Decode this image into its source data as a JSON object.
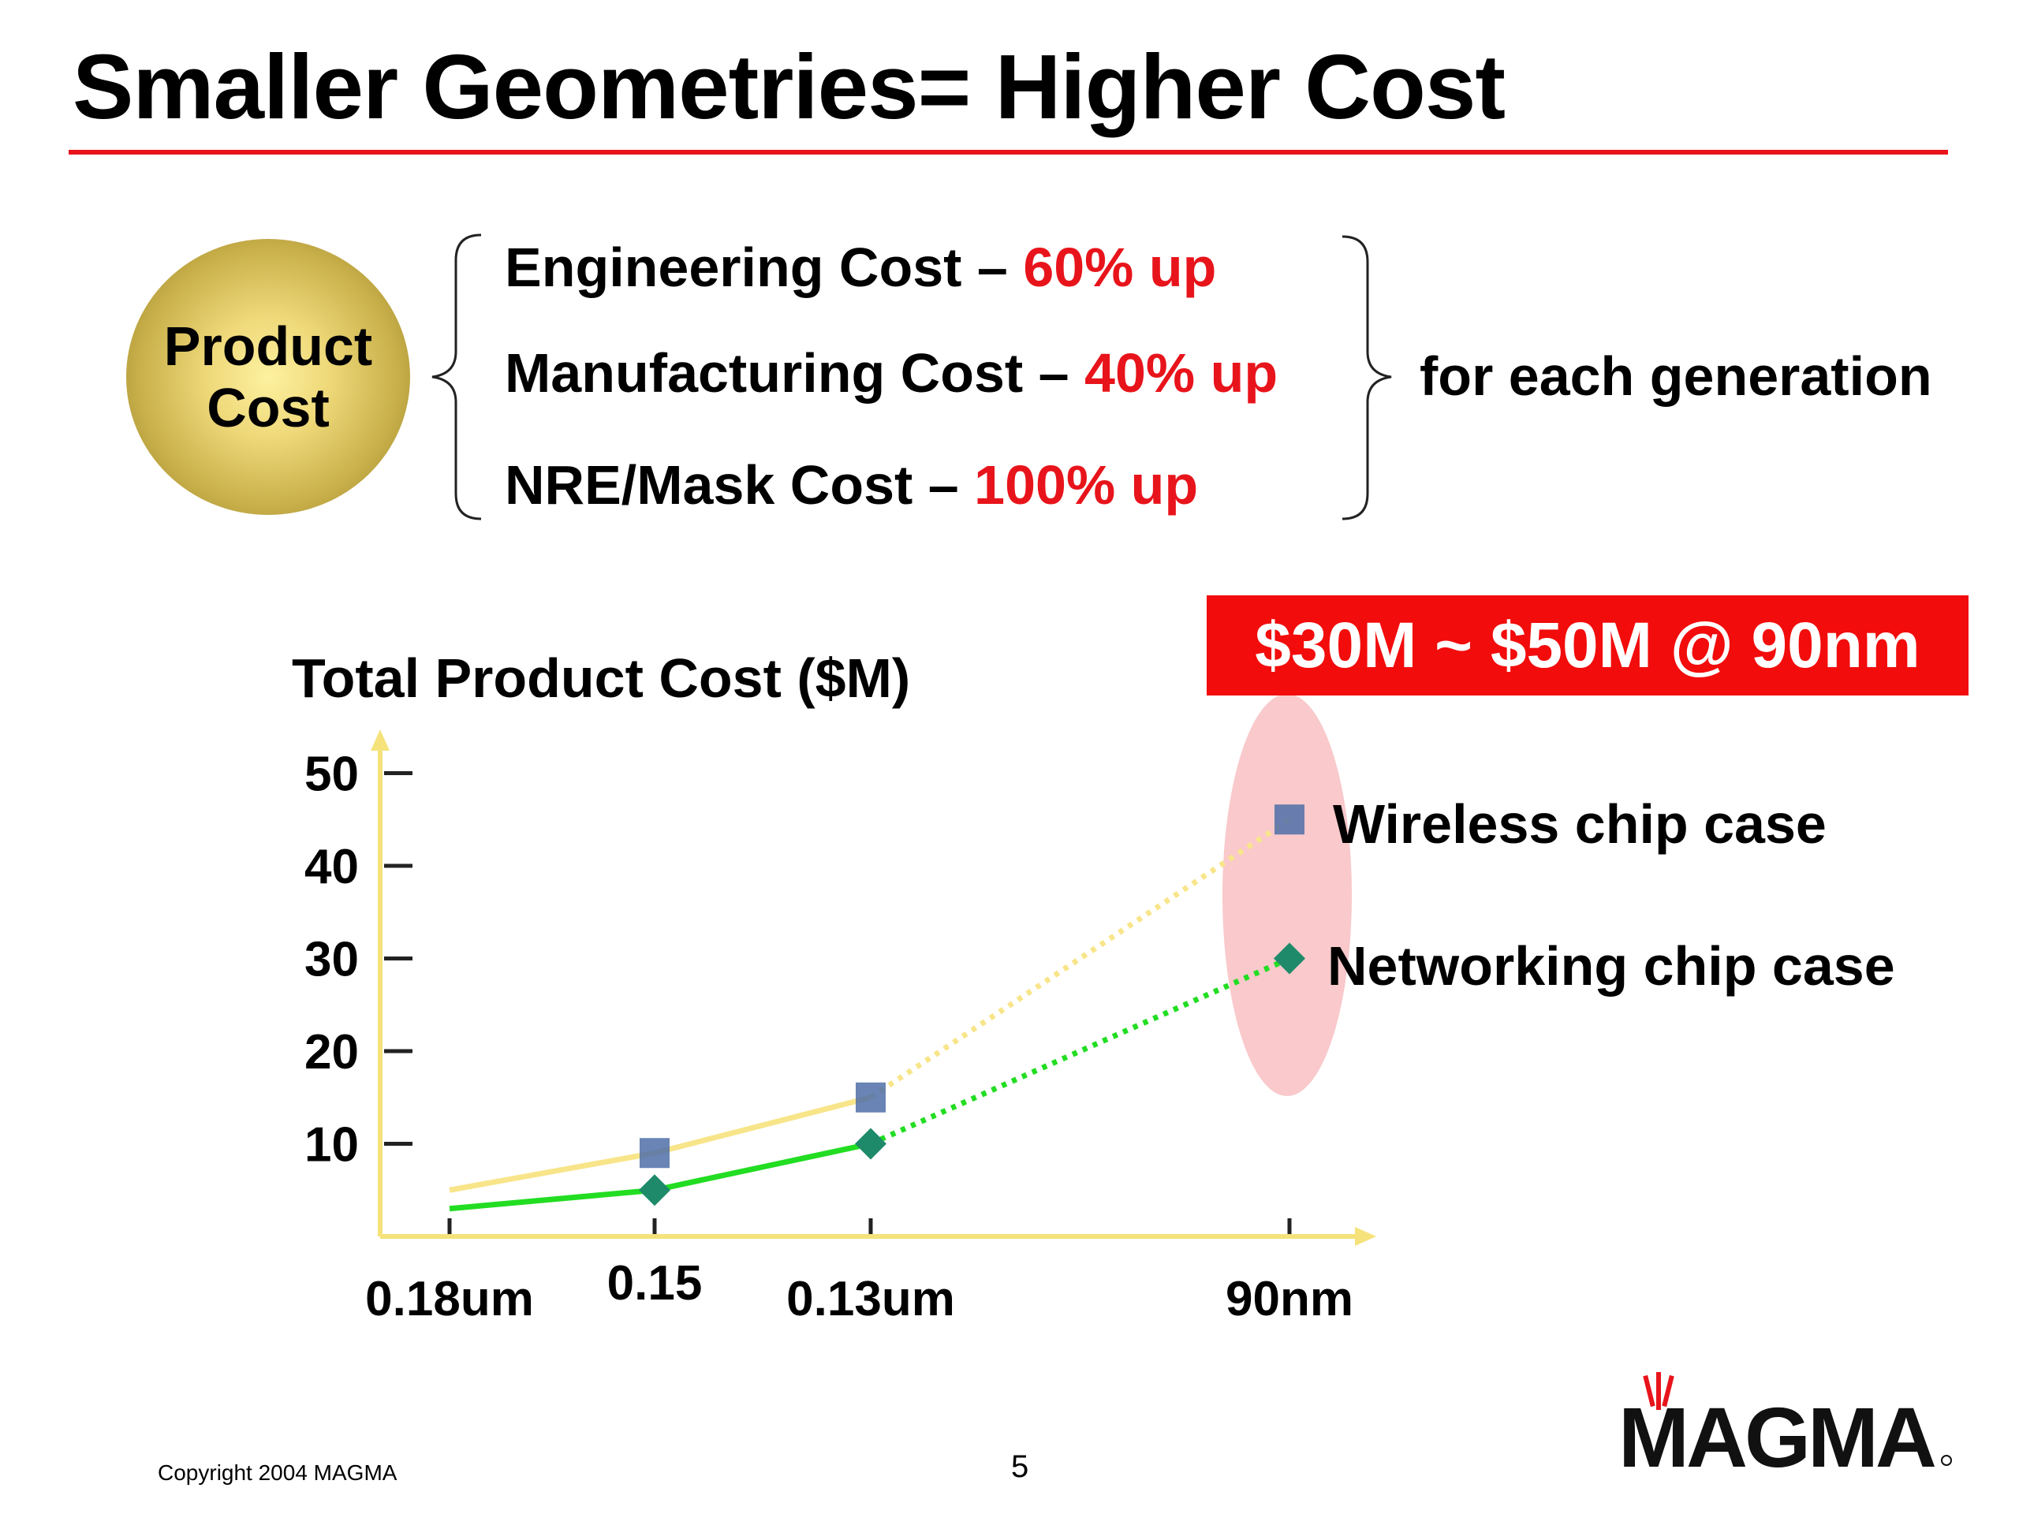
{
  "slide": {
    "title": "Smaller Geometries= Higher Cost",
    "product_cost": {
      "line1": "Product",
      "line2": "Cost"
    },
    "cost_items": [
      {
        "label": "Engineering Cost – ",
        "increase": "60% up"
      },
      {
        "label": "Manufacturing Cost – ",
        "increase": "40% up"
      },
      {
        "label": "NRE/Mask Cost – ",
        "increase": "100% up"
      }
    ],
    "for_each": "for each generation",
    "callout": "$30M ~ $50M @ 90nm",
    "copyright": "Copyright 2004 MAGMA",
    "page_number": "5",
    "logo_text": "MAGMA"
  },
  "colors": {
    "accent_red": "#e8141b",
    "callout_red": "#f20c0c",
    "axis_yellow": "#f5e27a",
    "wireless_line": "#f8e58a",
    "networking_line": "#22dd22",
    "wireless_marker": "#4f6fa8",
    "networking_marker": "#1e8a6a",
    "highlight_ellipse": "#f9c9cb"
  },
  "chart_data": {
    "type": "line",
    "title": "Total Product Cost ($M)",
    "xlabel": "",
    "ylabel": "",
    "categories": [
      "0.18um",
      "0.15",
      "0.13um",
      "90nm"
    ],
    "yticks": [
      10,
      20,
      30,
      40,
      50
    ],
    "ylim": [
      0,
      52
    ],
    "grid": false,
    "series": [
      {
        "name": "Wireless chip case",
        "marker": "square",
        "values": [
          5,
          9,
          15,
          45
        ],
        "marker_at": [
          false,
          true,
          true,
          true
        ],
        "dotted_from_index": 2
      },
      {
        "name": "Networking chip case",
        "marker": "diamond",
        "values": [
          3,
          5,
          10,
          30
        ],
        "marker_at": [
          false,
          true,
          true,
          true
        ],
        "dotted_from_index": 2
      }
    ],
    "highlight_category": "90nm"
  }
}
